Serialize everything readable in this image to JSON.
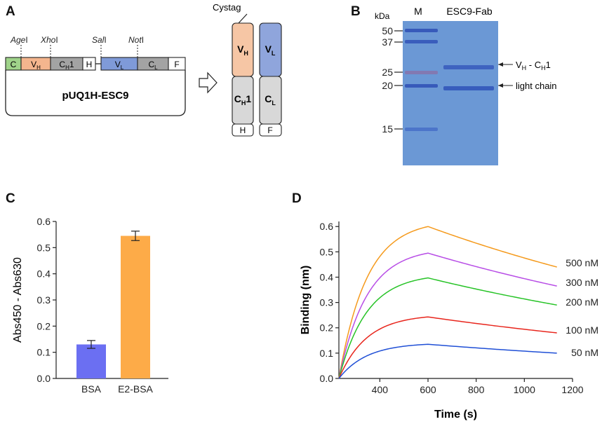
{
  "figure": {
    "panels": {
      "a": "A",
      "b": "B",
      "c": "C",
      "d": "D"
    }
  },
  "panel_a": {
    "sites": [
      {
        "italic": "Age",
        "suffix": "I"
      },
      {
        "italic": "Xho",
        "suffix": "I"
      },
      {
        "italic": "Sal",
        "suffix": "I"
      },
      {
        "italic": "Not",
        "suffix": "I"
      }
    ],
    "segments": [
      {
        "label": "C",
        "color": "#9fd38a"
      },
      {
        "label": "V",
        "sub": "H",
        "color": "#f4b58e"
      },
      {
        "label": "C",
        "sub": "H",
        "after": "1",
        "color": "#a3a3a3"
      },
      {
        "label": "H",
        "color": "#ffffff"
      },
      {
        "label": "V",
        "sub": "L",
        "color": "#7f9ad8"
      },
      {
        "label": "C",
        "sub": "L",
        "color": "#a3a3a3"
      },
      {
        "label": "F",
        "color": "#ffffff"
      }
    ],
    "plasmid_name": "pUQ1H-ESC9",
    "cystag_label": "Cystag",
    "heavy_chain": {
      "v": "V",
      "v_sub": "H",
      "c": "C",
      "c_sub": "H",
      "c_after": "1",
      "tag": "H",
      "v_color": "#f6c6a5",
      "c_color": "#d8d8d8"
    },
    "light_chain": {
      "v": "V",
      "v_sub": "L",
      "c": "C",
      "c_sub": "L",
      "tag": "F",
      "v_color": "#8fa5dc",
      "c_color": "#d8d8d8"
    }
  },
  "panel_b": {
    "kda_label": "kDa",
    "lane_markers": "M",
    "lane_sample": "ESC9-Fab",
    "markers": [
      "50",
      "37",
      "25",
      "20",
      "15"
    ],
    "heavy_label": {
      "a": "V",
      "a_sub": "H",
      "mid": " - C",
      "b_sub": "H",
      "after": "1"
    },
    "light_label": "light chain",
    "gel_color": "#6f9bd6"
  },
  "chart_data": [
    {
      "type": "bar",
      "title": "",
      "xlabel": "",
      "ylabel": "Abs450 - Abs630",
      "categories": [
        "BSA",
        "E2-BSA"
      ],
      "values": [
        0.13,
        0.545
      ],
      "errors": [
        0.015,
        0.018
      ],
      "colors": [
        "#6b6ff2",
        "#fdab48"
      ],
      "ylim": [
        0,
        0.6
      ],
      "yticks": [
        "0.0",
        "0.1",
        "0.2",
        "0.3",
        "0.4",
        "0.5",
        "0.6"
      ]
    },
    {
      "type": "line",
      "title": "",
      "xlabel": "Time (s)",
      "ylabel": "Binding (nm)",
      "xlim": [
        230,
        1200
      ],
      "ylim": [
        0,
        0.62
      ],
      "xticks": [
        "400",
        "600",
        "800",
        "1000",
        "1200"
      ],
      "yticks": [
        "0.0",
        "0.1",
        "0.2",
        "0.3",
        "0.4",
        "0.5",
        "0.6"
      ],
      "association": {
        "start": 230,
        "end": 600
      },
      "dissociation_end": 1135,
      "series": [
        {
          "name": "500 nM",
          "peak": 0.6,
          "end": 0.44,
          "color": "#f59a1c"
        },
        {
          "name": "300 nM",
          "peak": 0.495,
          "end": 0.365,
          "color": "#b84ee6"
        },
        {
          "name": "200 nM",
          "peak": 0.397,
          "end": 0.29,
          "color": "#26c326"
        },
        {
          "name": "100 nM",
          "peak": 0.243,
          "end": 0.18,
          "color": "#e8251c"
        },
        {
          "name": "50 nM",
          "peak": 0.135,
          "end": 0.1,
          "color": "#1f4fd6"
        }
      ]
    }
  ]
}
